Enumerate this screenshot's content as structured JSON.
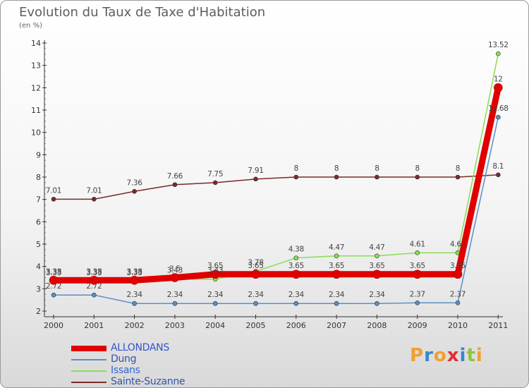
{
  "title": "Evolution du Taux de Taxe d'Habitation",
  "subtitle": "(en %)",
  "logo": {
    "letters": [
      "P",
      "r",
      "o",
      "x",
      "i",
      "t",
      "i"
    ],
    "colors": [
      "#f0a030",
      "#3a86c8",
      "#f0a030",
      "#e03030",
      "#3a86c8",
      "#8cc63f",
      "#f0a030"
    ]
  },
  "chart_data": {
    "type": "line",
    "title": "Evolution du Taux de Taxe d'Habitation",
    "subtitle": "(en %)",
    "categories": [
      "2000",
      "2001",
      "2002",
      "2003",
      "2004",
      "2005",
      "2006",
      "2007",
      "2008",
      "2009",
      "2010",
      "2011"
    ],
    "y_ticks": [
      "2",
      "3",
      "4",
      "5",
      "6",
      "7",
      "8",
      "9",
      "10",
      "11",
      "12",
      "13",
      "14"
    ],
    "ylim": [
      2,
      14
    ],
    "grid": false,
    "legend_position": "bottom-left",
    "series": [
      {
        "name": "ALLONDANS",
        "color": "#e00000",
        "width": 9,
        "marker": 6,
        "values": [
          3.38,
          3.38,
          3.38,
          3.5,
          3.65,
          3.65,
          3.65,
          3.65,
          3.65,
          3.65,
          3.65,
          12
        ],
        "labels": [
          "3.38",
          "3.38",
          "3.38",
          "3.5",
          "3.65",
          "3.65",
          "3.65",
          "3.65",
          "3.65",
          "3.65",
          "3.65",
          "12"
        ]
      },
      {
        "name": "Dung",
        "color": "#5a8fc8",
        "width": 1.5,
        "marker": 3,
        "values": [
          2.72,
          2.72,
          2.34,
          2.34,
          2.34,
          2.34,
          2.34,
          2.34,
          2.34,
          2.37,
          2.37,
          10.68
        ],
        "labels": [
          "2.72",
          "2.72",
          "2.34",
          "2.34",
          "2.34",
          "2.34",
          "2.34",
          "2.34",
          "2.34",
          "2.37",
          "2.37",
          "10.68"
        ]
      },
      {
        "name": "Issans",
        "color": "#88dd55",
        "width": 1.5,
        "marker": 3,
        "values": [
          3.33,
          3.33,
          3.33,
          3.43,
          3.43,
          3.78,
          4.38,
          4.47,
          4.47,
          4.61,
          4.61,
          13.52
        ],
        "labels": [
          "3.33",
          "3.33",
          "3.33",
          "3.43",
          "3.43",
          "3.78",
          "4.38",
          "4.47",
          "4.47",
          "4.61",
          "4.61",
          "13.52"
        ]
      },
      {
        "name": "Sainte-Suzanne",
        "color": "#7a2a2a",
        "width": 1.5,
        "marker": 3,
        "values": [
          7.01,
          7.01,
          7.36,
          7.66,
          7.75,
          7.91,
          8,
          8,
          8,
          8,
          8,
          8.1
        ],
        "labels": [
          "7.01",
          "7.01",
          "7.36",
          "7.66",
          "7.75",
          "7.91",
          "8",
          "8",
          "8",
          "8",
          "8",
          "8.1"
        ]
      }
    ]
  }
}
